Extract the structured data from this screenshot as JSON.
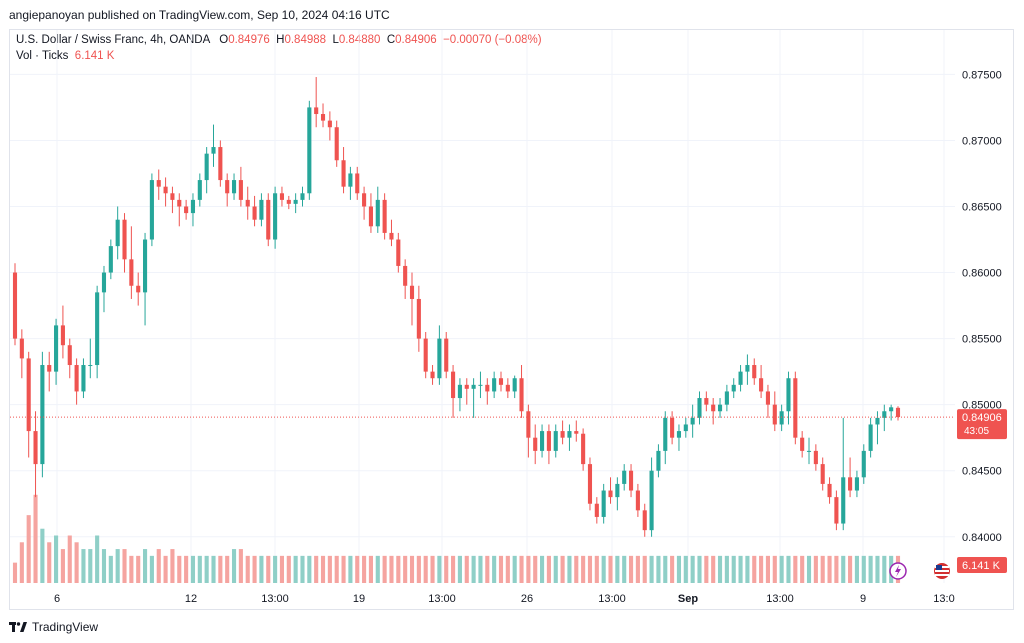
{
  "publisher_line": "angiepanoyan published on TradingView.com, Sep 10, 2024 04:16 UTC",
  "legend": {
    "symbol": "U.S. Dollar / Swiss Franc, 4h, OANDA",
    "o_label": "O",
    "o": "0.84976",
    "h_label": "H",
    "h": "0.84988",
    "l_label": "L",
    "l": "0.84880",
    "c_label": "C",
    "c": "0.84906",
    "change": "−0.00070 (−0.08%)",
    "vol_label": "Vol · Ticks",
    "vol_value": "6.141 K"
  },
  "price_label": "0.84906",
  "countdown": "43:05",
  "vol_label_badge": "6.141 K",
  "footer_brand": "TradingView",
  "colors": {
    "up": "#26a69a",
    "down": "#ef5350",
    "vol_up": "#8fcfc7",
    "vol_down": "#f5a4a0",
    "grid": "#f0f3fa"
  },
  "chart_data": {
    "type": "candlestick",
    "price_axis": {
      "ticks": [
        "0.87500",
        "0.87000",
        "0.86500",
        "0.86000",
        "0.85500",
        "0.85000",
        "0.84500",
        "0.84000"
      ],
      "range": [
        0.8365,
        0.8773
      ]
    },
    "time_axis": {
      "ticks": [
        "6",
        "12",
        "13:00",
        "19",
        "13:00",
        "26",
        "13:00",
        "Sep",
        "13:00",
        "9",
        "13:0"
      ]
    },
    "last_price": 0.84906,
    "ohlc": [
      [
        0.86,
        0.8607,
        0.8545,
        0.855
      ],
      [
        0.855,
        0.8557,
        0.852,
        0.8535
      ],
      [
        0.8535,
        0.854,
        0.846,
        0.848
      ],
      [
        0.848,
        0.8495,
        0.843,
        0.8455
      ],
      [
        0.8455,
        0.854,
        0.8445,
        0.853
      ],
      [
        0.853,
        0.854,
        0.851,
        0.8525
      ],
      [
        0.8525,
        0.8565,
        0.8515,
        0.856
      ],
      [
        0.856,
        0.8575,
        0.8535,
        0.8545
      ],
      [
        0.8545,
        0.855,
        0.852,
        0.853
      ],
      [
        0.853,
        0.8535,
        0.85,
        0.851
      ],
      [
        0.851,
        0.8535,
        0.8505,
        0.853
      ],
      [
        0.853,
        0.855,
        0.852,
        0.853
      ],
      [
        0.853,
        0.859,
        0.852,
        0.8585
      ],
      [
        0.8585,
        0.8605,
        0.857,
        0.86
      ],
      [
        0.86,
        0.8625,
        0.8595,
        0.862
      ],
      [
        0.862,
        0.865,
        0.861,
        0.864
      ],
      [
        0.864,
        0.8645,
        0.86,
        0.861
      ],
      [
        0.861,
        0.8635,
        0.858,
        0.859
      ],
      [
        0.859,
        0.86,
        0.8575,
        0.8585
      ],
      [
        0.8585,
        0.863,
        0.856,
        0.8625
      ],
      [
        0.8625,
        0.8675,
        0.862,
        0.867
      ],
      [
        0.867,
        0.8678,
        0.8655,
        0.8665
      ],
      [
        0.8665,
        0.8672,
        0.865,
        0.866
      ],
      [
        0.866,
        0.8665,
        0.8645,
        0.8655
      ],
      [
        0.8655,
        0.866,
        0.8635,
        0.865
      ],
      [
        0.865,
        0.8655,
        0.864,
        0.8645
      ],
      [
        0.8645,
        0.866,
        0.8635,
        0.8655
      ],
      [
        0.8655,
        0.8675,
        0.865,
        0.867
      ],
      [
        0.867,
        0.8695,
        0.866,
        0.869
      ],
      [
        0.869,
        0.8712,
        0.868,
        0.8695
      ],
      [
        0.8695,
        0.87,
        0.8665,
        0.867
      ],
      [
        0.867,
        0.8675,
        0.865,
        0.866
      ],
      [
        0.866,
        0.8675,
        0.8655,
        0.867
      ],
      [
        0.867,
        0.868,
        0.865,
        0.8655
      ],
      [
        0.8655,
        0.8665,
        0.864,
        0.865
      ],
      [
        0.865,
        0.8658,
        0.8635,
        0.864
      ],
      [
        0.864,
        0.866,
        0.8635,
        0.8655
      ],
      [
        0.8655,
        0.866,
        0.862,
        0.8625
      ],
      [
        0.8625,
        0.8665,
        0.8618,
        0.866
      ],
      [
        0.866,
        0.8665,
        0.865,
        0.8655
      ],
      [
        0.8655,
        0.8658,
        0.8648,
        0.8652
      ],
      [
        0.8652,
        0.866,
        0.8645,
        0.8655
      ],
      [
        0.8655,
        0.8665,
        0.865,
        0.866
      ],
      [
        0.866,
        0.873,
        0.8655,
        0.8725
      ],
      [
        0.8725,
        0.8748,
        0.871,
        0.872
      ],
      [
        0.872,
        0.8728,
        0.871,
        0.8715
      ],
      [
        0.8715,
        0.8722,
        0.87,
        0.871
      ],
      [
        0.871,
        0.8715,
        0.868,
        0.8685
      ],
      [
        0.8685,
        0.8695,
        0.866,
        0.8665
      ],
      [
        0.8665,
        0.868,
        0.8655,
        0.8675
      ],
      [
        0.8675,
        0.868,
        0.8655,
        0.866
      ],
      [
        0.866,
        0.8665,
        0.864,
        0.865
      ],
      [
        0.865,
        0.866,
        0.863,
        0.8635
      ],
      [
        0.8635,
        0.8665,
        0.863,
        0.8655
      ],
      [
        0.8655,
        0.866,
        0.8625,
        0.863
      ],
      [
        0.863,
        0.864,
        0.862,
        0.8625
      ],
      [
        0.8625,
        0.863,
        0.86,
        0.8605
      ],
      [
        0.8605,
        0.861,
        0.858,
        0.859
      ],
      [
        0.859,
        0.86,
        0.856,
        0.858
      ],
      [
        0.858,
        0.859,
        0.854,
        0.855
      ],
      [
        0.855,
        0.8555,
        0.852,
        0.8525
      ],
      [
        0.8525,
        0.853,
        0.8515,
        0.852
      ],
      [
        0.852,
        0.856,
        0.8515,
        0.855
      ],
      [
        0.855,
        0.8555,
        0.852,
        0.8525
      ],
      [
        0.8525,
        0.853,
        0.849,
        0.8505
      ],
      [
        0.8505,
        0.852,
        0.8495,
        0.8515
      ],
      [
        0.8515,
        0.852,
        0.85,
        0.8512
      ],
      [
        0.8512,
        0.852,
        0.849,
        0.8515
      ],
      [
        0.8515,
        0.8525,
        0.8505,
        0.8515
      ],
      [
        0.8515,
        0.852,
        0.85,
        0.851
      ],
      [
        0.851,
        0.8525,
        0.8505,
        0.852
      ],
      [
        0.852,
        0.8525,
        0.851,
        0.8515
      ],
      [
        0.8515,
        0.852,
        0.8505,
        0.851
      ],
      [
        0.851,
        0.8522,
        0.8505,
        0.852
      ],
      [
        0.852,
        0.853,
        0.849,
        0.8495
      ],
      [
        0.8495,
        0.85,
        0.846,
        0.8475
      ],
      [
        0.8475,
        0.8485,
        0.8455,
        0.8465
      ],
      [
        0.8465,
        0.8485,
        0.846,
        0.848
      ],
      [
        0.848,
        0.8485,
        0.8455,
        0.8465
      ],
      [
        0.8465,
        0.8485,
        0.846,
        0.848
      ],
      [
        0.848,
        0.8488,
        0.847,
        0.8475
      ],
      [
        0.8475,
        0.8485,
        0.8465,
        0.848
      ],
      [
        0.848,
        0.8488,
        0.8472,
        0.8478
      ],
      [
        0.8478,
        0.8482,
        0.845,
        0.8455
      ],
      [
        0.8455,
        0.846,
        0.842,
        0.8425
      ],
      [
        0.8425,
        0.843,
        0.841,
        0.8415
      ],
      [
        0.8415,
        0.844,
        0.841,
        0.8435
      ],
      [
        0.8435,
        0.8445,
        0.8425,
        0.843
      ],
      [
        0.843,
        0.8445,
        0.842,
        0.844
      ],
      [
        0.844,
        0.8455,
        0.8435,
        0.845
      ],
      [
        0.845,
        0.8455,
        0.843,
        0.8435
      ],
      [
        0.8435,
        0.844,
        0.8415,
        0.842
      ],
      [
        0.842,
        0.8425,
        0.84,
        0.8405
      ],
      [
        0.8405,
        0.846,
        0.84,
        0.845
      ],
      [
        0.845,
        0.847,
        0.8445,
        0.8465
      ],
      [
        0.8465,
        0.8495,
        0.8455,
        0.849
      ],
      [
        0.849,
        0.8495,
        0.847,
        0.8475
      ],
      [
        0.8475,
        0.8485,
        0.8465,
        0.848
      ],
      [
        0.848,
        0.849,
        0.8475,
        0.8485
      ],
      [
        0.8485,
        0.85,
        0.8475,
        0.849
      ],
      [
        0.849,
        0.851,
        0.8485,
        0.8505
      ],
      [
        0.8505,
        0.851,
        0.8495,
        0.85
      ],
      [
        0.85,
        0.8505,
        0.8485,
        0.8495
      ],
      [
        0.8495,
        0.8505,
        0.849,
        0.85
      ],
      [
        0.85,
        0.8515,
        0.8495,
        0.851
      ],
      [
        0.851,
        0.852,
        0.8505,
        0.8515
      ],
      [
        0.8515,
        0.853,
        0.851,
        0.8525
      ],
      [
        0.8525,
        0.8538,
        0.8515,
        0.853
      ],
      [
        0.853,
        0.8535,
        0.8515,
        0.852
      ],
      [
        0.852,
        0.853,
        0.8505,
        0.851
      ],
      [
        0.851,
        0.8515,
        0.849,
        0.85
      ],
      [
        0.85,
        0.851,
        0.848,
        0.8485
      ],
      [
        0.8485,
        0.85,
        0.848,
        0.8495
      ],
      [
        0.8495,
        0.8525,
        0.8485,
        0.852
      ],
      [
        0.852,
        0.8525,
        0.847,
        0.8475
      ],
      [
        0.8475,
        0.848,
        0.846,
        0.8465
      ],
      [
        0.8465,
        0.8475,
        0.8455,
        0.8465
      ],
      [
        0.8465,
        0.847,
        0.845,
        0.8455
      ],
      [
        0.8455,
        0.846,
        0.8435,
        0.844
      ],
      [
        0.844,
        0.8445,
        0.8425,
        0.843
      ],
      [
        0.843,
        0.8435,
        0.8405,
        0.841
      ],
      [
        0.841,
        0.849,
        0.8405,
        0.8445
      ],
      [
        0.8445,
        0.846,
        0.843,
        0.8435
      ],
      [
        0.8435,
        0.845,
        0.843,
        0.8445
      ],
      [
        0.8445,
        0.847,
        0.844,
        0.8465
      ],
      [
        0.8465,
        0.849,
        0.846,
        0.8485
      ],
      [
        0.8485,
        0.8495,
        0.847,
        0.849
      ],
      [
        0.849,
        0.85,
        0.848,
        0.8495
      ],
      [
        0.8495,
        0.85,
        0.8488,
        0.8498
      ],
      [
        0.84976,
        0.84988,
        0.8488,
        0.84906
      ]
    ],
    "volume": [
      3,
      6,
      10,
      13,
      8,
      6,
      7,
      5,
      7,
      6,
      5,
      5,
      7,
      5,
      4,
      5,
      5,
      4,
      4,
      5,
      4,
      5,
      4,
      5,
      4,
      4,
      4,
      4,
      4,
      4,
      4,
      4,
      5,
      5,
      4,
      4,
      4,
      4,
      4,
      4,
      4,
      4,
      4,
      4,
      4,
      4,
      4,
      4,
      4,
      4,
      4,
      4,
      4,
      4,
      4,
      4,
      4,
      4,
      4,
      4,
      4,
      4,
      4,
      4,
      4,
      4,
      4,
      4,
      4,
      4,
      4,
      4,
      4,
      4,
      4,
      4,
      4,
      4,
      4,
      4,
      4,
      4,
      4,
      4,
      4,
      4,
      4,
      4,
      4,
      4,
      4,
      4,
      4,
      4,
      4,
      4,
      4,
      4,
      4,
      4,
      4,
      4,
      4,
      4,
      4,
      4,
      4,
      4,
      4,
      4,
      4,
      4,
      4,
      4,
      4,
      4,
      4,
      4,
      4,
      4,
      4,
      4,
      4,
      4,
      4,
      4,
      4,
      4,
      4,
      4,
      4,
      4,
      4
    ]
  }
}
